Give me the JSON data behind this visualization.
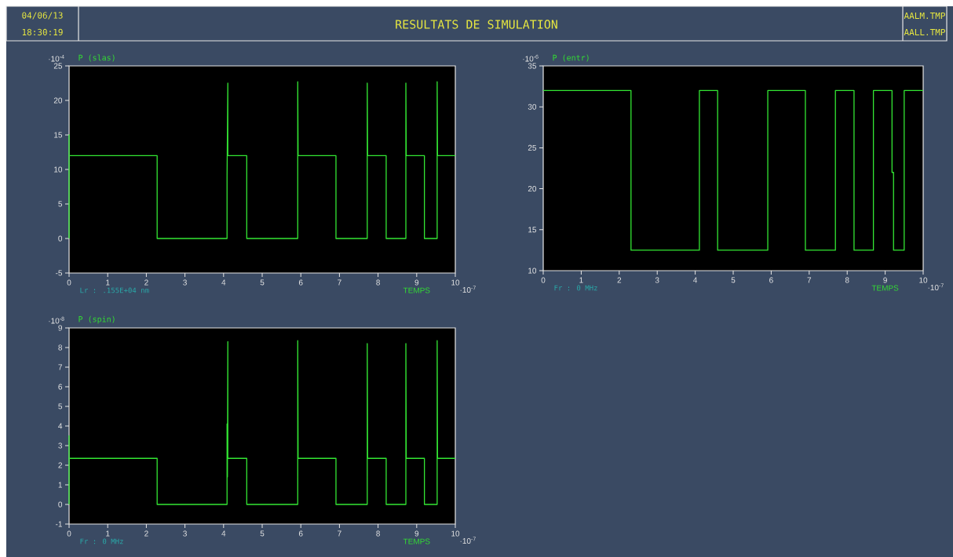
{
  "chart_data": [
    {
      "type": "line",
      "title": "RESULTATS DE SIMULATION",
      "ylabel": "P (slas)",
      "xlabel": "TEMPS",
      "annotations": [
        "·10$^{-4}$",
        "·10$^{-7}$",
        "Lr : .155E+04 nm",
        "04/06/13",
        "18:30:19",
        "AALM.TMP",
        "AALL.TMP"
      ],
      "x": [
        0,
        0,
        0,
        0.02,
        2.28,
        2.28,
        4.09,
        4.09,
        4.11,
        4.11,
        4.6,
        4.6,
        5.92,
        5.92,
        5.93,
        6.91,
        6.91,
        7.72,
        7.72,
        7.73,
        8.21,
        8.21,
        8.72,
        8.72,
        8.73,
        9.2,
        9.2,
        9.53,
        9.53,
        9.54,
        10
      ],
      "series": [
        {
          "color": "#33e633",
          "values": [
            0,
            15,
            12,
            12,
            12,
            0,
            0,
            9,
            22.5,
            12,
            12,
            0,
            0,
            22.7,
            12,
            12,
            0,
            0,
            22.5,
            12,
            12,
            0,
            0,
            22.5,
            12,
            12,
            0,
            0,
            22.7,
            12,
            12
          ]
        }
      ],
      "xlim": [
        0,
        10
      ],
      "ylim": [
        -5,
        25
      ],
      "xticks": [
        0,
        1,
        2,
        3,
        4,
        5,
        6,
        7,
        8,
        9,
        10
      ],
      "yticks": [
        -5,
        0,
        5,
        10,
        15,
        20,
        25
      ]
    },
    {
      "type": "line",
      "ylabel": "P (entr)",
      "xlabel": "TEMPS",
      "annotations": [
        "·10$^{-6}$",
        "·10$^{-7}$",
        "Fr : 0 MHz"
      ],
      "x": [
        0,
        2.31,
        2.31,
        4.11,
        4.11,
        4.59,
        4.59,
        5.91,
        5.91,
        6.9,
        6.9,
        7.69,
        7.69,
        8.18,
        8.18,
        8.69,
        8.69,
        9.18,
        9.18,
        9.22,
        9.22,
        9.5,
        9.5,
        10
      ],
      "series": [
        {
          "color": "#33e633",
          "values": [
            32,
            32,
            12.5,
            12.5,
            32,
            32,
            12.5,
            12.5,
            32,
            32,
            12.5,
            12.5,
            32,
            32,
            12.5,
            12.5,
            32,
            32,
            22,
            22,
            12.5,
            12.5,
            32,
            32
          ]
        }
      ],
      "xlim": [
        0,
        10
      ],
      "ylim": [
        10,
        35
      ],
      "xticks": [
        0,
        1,
        2,
        3,
        4,
        5,
        6,
        7,
        8,
        9,
        10
      ],
      "yticks": [
        10,
        15,
        20,
        25,
        30,
        35
      ]
    },
    {
      "type": "line",
      "ylabel": "P (spin)",
      "xlabel": "TEMPS",
      "annotations": [
        "·10$^{-8}$",
        "·10$^{-7}$",
        "Fr : 0 MHz"
      ],
      "x": [
        0,
        0,
        0,
        2.28,
        2.28,
        4.09,
        4.09,
        4.1,
        4.11,
        4.11,
        4.6,
        4.6,
        5.92,
        5.92,
        5.93,
        6.91,
        6.91,
        7.72,
        7.72,
        7.73,
        8.21,
        8.21,
        8.72,
        8.72,
        8.73,
        9.2,
        9.2,
        9.53,
        9.53,
        9.54,
        10
      ],
      "series": [
        {
          "color": "#33e633",
          "values": [
            0,
            3.5,
            2.35,
            2.35,
            0,
            0,
            4.1,
            1.4,
            8.3,
            2.35,
            2.35,
            0,
            0,
            8.35,
            2.35,
            2.35,
            0,
            0,
            8.2,
            2.35,
            2.35,
            0,
            0,
            8.2,
            2.35,
            2.35,
            0,
            0,
            8.35,
            2.35,
            2.35
          ]
        }
      ],
      "xlim": [
        0,
        10
      ],
      "ylim": [
        -1,
        9
      ],
      "xticks": [
        0,
        1,
        2,
        3,
        4,
        5,
        6,
        7,
        8,
        9,
        10
      ],
      "yticks": [
        -1,
        0,
        1,
        2,
        3,
        4,
        5,
        6,
        7,
        8,
        9
      ]
    }
  ]
}
